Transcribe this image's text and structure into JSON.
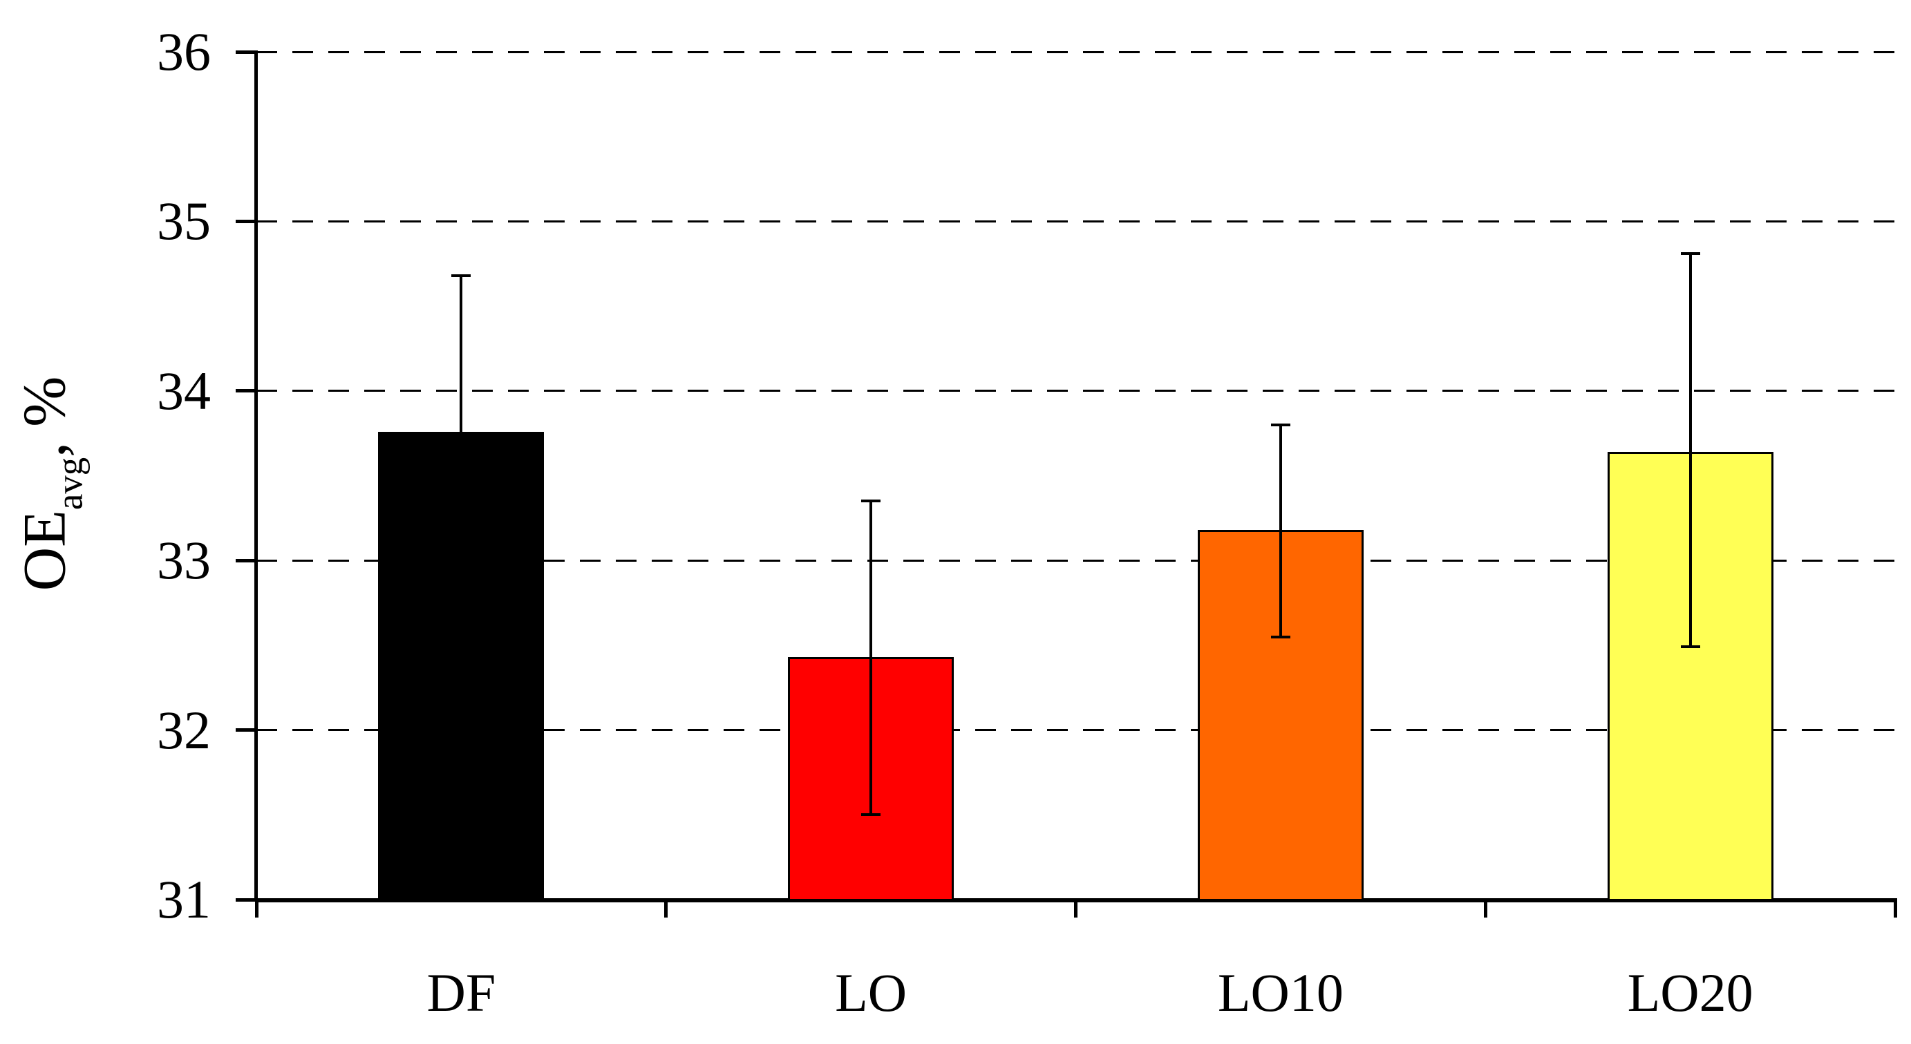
{
  "chart_data": {
    "type": "bar",
    "title": "",
    "categories": [
      "DF",
      "LO",
      "LO10",
      "LO20"
    ],
    "values": [
      33.76,
      32.43,
      33.18,
      33.64
    ],
    "error_up": [
      0.92,
      0.92,
      0.62,
      1.17
    ],
    "error_down": [
      null,
      0.93,
      0.63,
      1.15
    ],
    "bar_colors": [
      "#000000",
      "#ff0000",
      "#ff6600",
      "#ffff55"
    ],
    "bar_border_color": "#000000",
    "ylabel": "OEavg, %",
    "ylabel_parts": {
      "base": "OE",
      "sub": "avg",
      "suffix": ", %"
    },
    "xlabel": "",
    "ylim": [
      31,
      36
    ],
    "yticks": [
      "31",
      "32",
      "33",
      "34",
      "35",
      "36"
    ],
    "gridlines": {
      "style": "dashed",
      "orientation": "horizontal",
      "at": [
        32,
        33,
        34,
        35,
        36
      ]
    },
    "axis_color": "#000000",
    "background_color": "#ffffff",
    "legend": null
  }
}
